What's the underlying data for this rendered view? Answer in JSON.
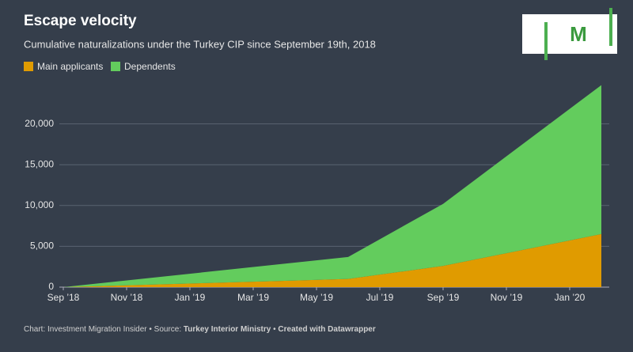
{
  "logo": "M",
  "chart_data": {
    "type": "stacked-area",
    "title": "Escape velocity",
    "subtitle": "Cumulative naturalizations under the Turkey CIP since September 19th, 2018",
    "x": [
      "2018-09",
      "2019-06",
      "2019-09",
      "2020-02"
    ],
    "xlim": [
      "2018-09",
      "2020-02"
    ],
    "xticks": [
      {
        "value": "2018-09",
        "label": "Sep ’18"
      },
      {
        "value": "2018-11",
        "label": "Nov ’18"
      },
      {
        "value": "2019-01",
        "label": "Jan ’19"
      },
      {
        "value": "2019-03",
        "label": "Mar ’19"
      },
      {
        "value": "2019-05",
        "label": "May ’19"
      },
      {
        "value": "2019-07",
        "label": "Jul ’19"
      },
      {
        "value": "2019-09",
        "label": "Sep ’19"
      },
      {
        "value": "2019-11",
        "label": "Nov ’19"
      },
      {
        "value": "2020-01",
        "label": "Jan ’20"
      }
    ],
    "series": [
      {
        "name": "Main applicants",
        "color": "#e09b00",
        "values": [
          0,
          1000,
          2600,
          6500
        ]
      },
      {
        "name": "Dependents",
        "color": "#63cc5d",
        "values": [
          0,
          2700,
          7600,
          18250
        ]
      }
    ],
    "ylim": [
      0,
      25000
    ],
    "yticks": [
      0,
      {
        "value": 5000,
        "label": "5,000"
      },
      {
        "value": 10000,
        "label": "10,000"
      },
      {
        "value": 15000,
        "label": "15,000"
      },
      {
        "value": 20000,
        "label": "20,000"
      }
    ],
    "grid": true,
    "footer": {
      "credit": "Chart: Investment Migration Insider • Source: ",
      "source": "Turkey Interior Ministry",
      "sep": " • ",
      "tool": "Created with Datawrapper"
    }
  }
}
